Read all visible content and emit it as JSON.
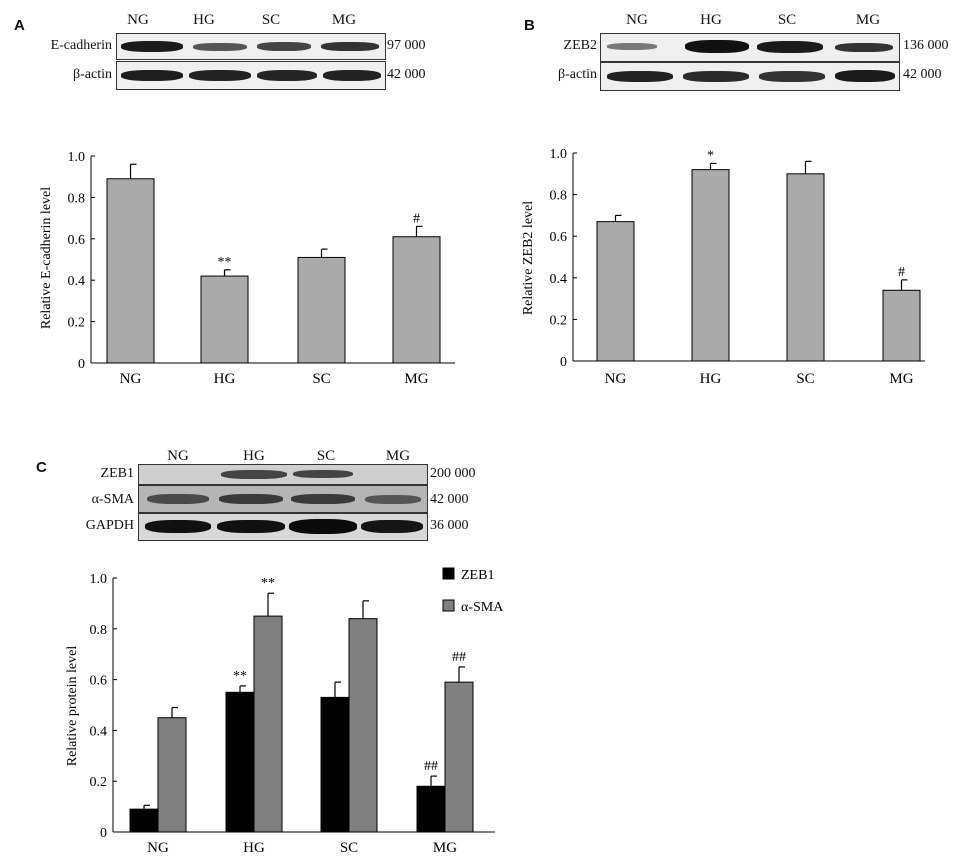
{
  "panels": [
    {
      "label": "A",
      "lanes": [
        "NG",
        "HG",
        "SC",
        "MG"
      ],
      "blot_rows": [
        {
          "name": "E-cadherin",
          "mw": "97 000"
        },
        {
          "name": "β-actin",
          "mw": "42 000"
        }
      ]
    },
    {
      "label": "B",
      "lanes": [
        "NG",
        "HG",
        "SC",
        "MG"
      ],
      "blot_rows": [
        {
          "name": "ZEB2",
          "mw": "136 000"
        },
        {
          "name": "β-actin",
          "mw": "42 000"
        }
      ]
    },
    {
      "label": "C",
      "lanes": [
        "NG",
        "HG",
        "SC",
        "MG"
      ],
      "blot_rows": [
        {
          "name": "ZEB1",
          "mw": "200 000"
        },
        {
          "name": "α-SMA",
          "mw": "42 000"
        },
        {
          "name": "GAPDH",
          "mw": "36 000"
        }
      ]
    }
  ],
  "chart_data": [
    {
      "type": "bar",
      "categories": [
        "NG",
        "HG",
        "SC",
        "MG"
      ],
      "ylabel": "Relative E-cadherin level",
      "ylim": [
        0,
        1.0
      ],
      "yticks": [
        "0",
        "0.2",
        "0.4",
        "0.6",
        "0.8",
        "1.0"
      ],
      "series": [
        {
          "values": [
            0.89,
            0.42,
            0.51,
            0.61
          ],
          "errors": [
            0.07,
            0.03,
            0.04,
            0.05
          ],
          "annotations": [
            "",
            "**",
            "",
            "#"
          ],
          "color": "#aaaaaa"
        }
      ]
    },
    {
      "type": "bar",
      "categories": [
        "NG",
        "HG",
        "SC",
        "MG"
      ],
      "ylabel": "Relative ZEB2 level",
      "ylim": [
        0,
        1.0
      ],
      "yticks": [
        "0",
        "0.2",
        "0.4",
        "0.6",
        "0.8",
        "1.0"
      ],
      "series": [
        {
          "values": [
            0.67,
            0.92,
            0.9,
            0.34
          ],
          "errors": [
            0.03,
            0.03,
            0.06,
            0.05
          ],
          "annotations": [
            "",
            "*",
            "",
            "#"
          ],
          "color": "#aaaaaa"
        }
      ]
    },
    {
      "type": "bar",
      "categories": [
        "NG",
        "HG",
        "SC",
        "MG"
      ],
      "ylabel": "Relative protein level",
      "ylim": [
        0,
        1.0
      ],
      "yticks": [
        "0",
        "0.2",
        "0.4",
        "0.6",
        "0.8",
        "1.0"
      ],
      "legend_position": "top-right",
      "series": [
        {
          "name": "ZEB1",
          "values": [
            0.09,
            0.55,
            0.53,
            0.18
          ],
          "errors": [
            0.015,
            0.025,
            0.06,
            0.04
          ],
          "annotations": [
            "",
            "**",
            "",
            "##"
          ],
          "color": "#000000"
        },
        {
          "name": "α-SMA",
          "values": [
            0.45,
            0.85,
            0.84,
            0.59
          ],
          "errors": [
            0.04,
            0.09,
            0.07,
            0.06
          ],
          "annotations": [
            "",
            "**",
            "",
            "##"
          ],
          "color": "#808080"
        }
      ]
    }
  ]
}
